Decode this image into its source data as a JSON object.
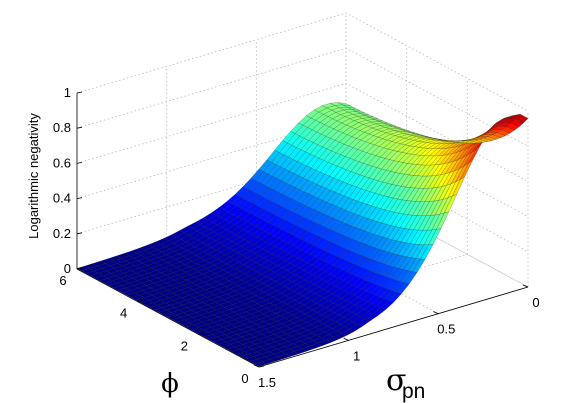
{
  "chart_data": {
    "type": "surface",
    "title": "",
    "zlabel": "Logarithmic negativity",
    "x_axis": {
      "symbol": "σ",
      "subscript": "pn",
      "range": [
        0,
        1.5
      ],
      "ticks": [
        "0",
        "0.5",
        "1",
        "1.5"
      ]
    },
    "y_axis": {
      "symbol": "ϕ",
      "range": [
        0,
        6
      ],
      "ticks": [
        "0",
        "2",
        "4",
        "6"
      ]
    },
    "z_axis": {
      "range": [
        0,
        1
      ],
      "ticks": [
        "0",
        "0.2",
        "0.4",
        "0.6",
        "0.8",
        "1"
      ]
    },
    "grid": true,
    "colormap": "jet",
    "peak": {
      "sigma_pn": 0,
      "phi": 0,
      "value": 0.96
    },
    "description_points": [
      {
        "sigma_pn": 0,
        "phi": 0,
        "value": 0.96
      },
      {
        "sigma_pn": 0,
        "phi": 1.2,
        "value": 0.72
      },
      {
        "sigma_pn": 0,
        "phi": 3,
        "value": 0.5
      },
      {
        "sigma_pn": 0.5,
        "phi": 0,
        "value": 0.66
      },
      {
        "sigma_pn": 1,
        "phi": 0,
        "value": 0.25
      },
      {
        "sigma_pn": 1.5,
        "phi": 0,
        "value": 0.0
      },
      {
        "sigma_pn": 1.5,
        "phi": 6,
        "value": 0.0
      }
    ]
  },
  "labels": {
    "zlabel": "Logarithmic negativity",
    "x_symbol": "σ",
    "x_sub": "pn",
    "y_symbol": "ϕ"
  },
  "colors": {
    "colormap_low": "#00008f",
    "colormap_high": "#800000",
    "grid": "#b9b9b9"
  }
}
